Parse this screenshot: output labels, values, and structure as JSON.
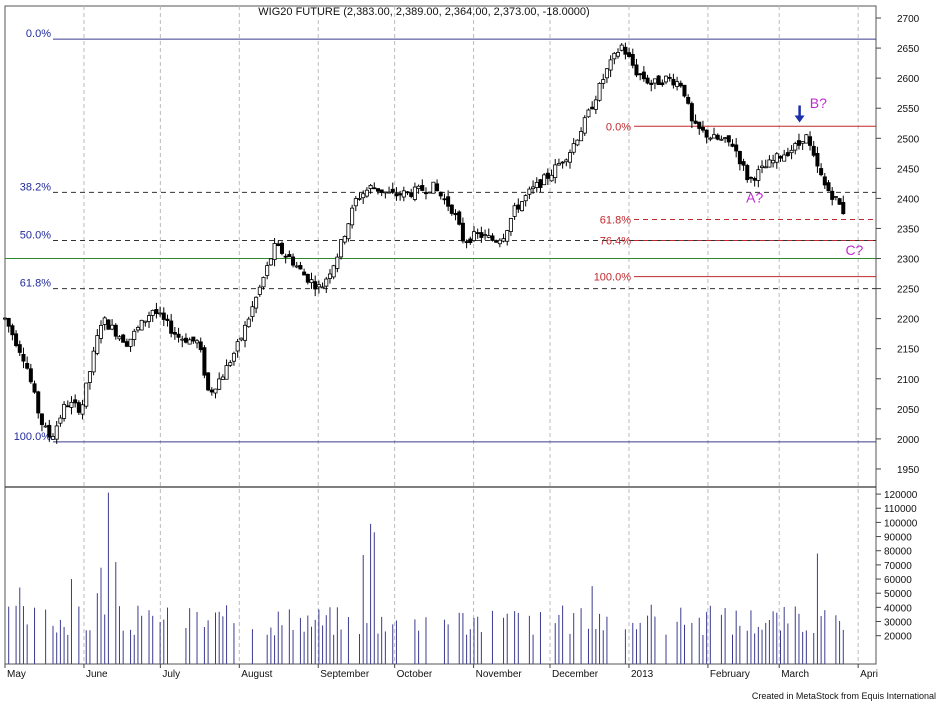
{
  "chart_data": {
    "type": "candlestick",
    "title": "WIG20 FUTURE (2,383.00, 2,389.00, 2,364.00, 2,373.00, -18.0000)",
    "footer": "Created in MetaStock from Equis International",
    "price_axis": {
      "ylim": [
        1920,
        2720
      ],
      "ticks": [
        1950,
        2000,
        2050,
        2100,
        2150,
        2200,
        2250,
        2300,
        2350,
        2400,
        2450,
        2500,
        2550,
        2600,
        2650,
        2700
      ]
    },
    "volume_axis": {
      "ylim": [
        0,
        125000
      ],
      "ticks": [
        20000,
        30000,
        40000,
        50000,
        60000,
        70000,
        80000,
        90000,
        100000,
        110000,
        120000
      ]
    },
    "x_labels": [
      {
        "label": "May",
        "day": 0
      },
      {
        "label": "June",
        "day": 31
      },
      {
        "label": "July",
        "day": 61
      },
      {
        "label": "August",
        "day": 92
      },
      {
        "label": "September",
        "day": 123
      },
      {
        "label": "October",
        "day": 153
      },
      {
        "label": "November",
        "day": 184
      },
      {
        "label": "December",
        "day": 214
      },
      {
        "label": "2013",
        "day": 245
      },
      {
        "label": "February",
        "day": 276
      },
      {
        "label": "March",
        "day": 304
      },
      {
        "label": "Apri",
        "day": 335
      }
    ],
    "fib_big": [
      {
        "label": "0.0%",
        "value": 2665
      },
      {
        "label": "38.2%",
        "value": 2410
      },
      {
        "label": "50.0%",
        "value": 2330
      },
      {
        "label": "61.8%",
        "value": 2250
      },
      {
        "label": "100.0%",
        "value": 1995
      }
    ],
    "green_line": 2300,
    "fib_small": [
      {
        "label": "0.0%",
        "value": 2520
      },
      {
        "label": "61.8%",
        "value": 2365
      },
      {
        "label": "76.4%",
        "value": 2330
      },
      {
        "label": "100.0%",
        "value": 2270
      }
    ],
    "annotations": [
      {
        "text": "B?",
        "day": 316,
        "value": 2550
      },
      {
        "text": "A?",
        "day": 291,
        "value": 2393
      },
      {
        "text": "C?",
        "day": 330,
        "value": 2306
      }
    ],
    "arrow": {
      "day": 312,
      "value": 2528
    },
    "waypoints": [
      [
        0,
        2200
      ],
      [
        8,
        2130
      ],
      [
        14,
        2030
      ],
      [
        18,
        2000
      ],
      [
        24,
        2060
      ],
      [
        30,
        2050
      ],
      [
        38,
        2200
      ],
      [
        48,
        2160
      ],
      [
        58,
        2215
      ],
      [
        68,
        2170
      ],
      [
        76,
        2160
      ],
      [
        80,
        2075
      ],
      [
        86,
        2110
      ],
      [
        92,
        2160
      ],
      [
        100,
        2250
      ],
      [
        106,
        2320
      ],
      [
        112,
        2300
      ],
      [
        118,
        2270
      ],
      [
        124,
        2250
      ],
      [
        130,
        2300
      ],
      [
        134,
        2350
      ],
      [
        138,
        2400
      ],
      [
        144,
        2420
      ],
      [
        152,
        2405
      ],
      [
        160,
        2410
      ],
      [
        168,
        2420
      ],
      [
        176,
        2380
      ],
      [
        180,
        2330
      ],
      [
        186,
        2340
      ],
      [
        192,
        2330
      ],
      [
        196,
        2340
      ],
      [
        200,
        2380
      ],
      [
        206,
        2410
      ],
      [
        214,
        2440
      ],
      [
        222,
        2480
      ],
      [
        228,
        2530
      ],
      [
        236,
        2610
      ],
      [
        242,
        2655
      ],
      [
        248,
        2610
      ],
      [
        254,
        2590
      ],
      [
        260,
        2600
      ],
      [
        266,
        2590
      ],
      [
        270,
        2520
      ],
      [
        278,
        2500
      ],
      [
        286,
        2490
      ],
      [
        292,
        2430
      ],
      [
        298,
        2450
      ],
      [
        304,
        2470
      ],
      [
        312,
        2490
      ],
      [
        314,
        2510
      ],
      [
        318,
        2460
      ],
      [
        322,
        2420
      ],
      [
        326,
        2400
      ],
      [
        330,
        2373
      ]
    ],
    "volume_spikes": [
      {
        "day": 40,
        "value": 121000
      },
      {
        "day": 38,
        "value": 68000
      },
      {
        "day": 43,
        "value": 72000
      },
      {
        "day": 143,
        "value": 99000
      },
      {
        "day": 145,
        "value": 93000
      },
      {
        "day": 141,
        "value": 77000
      },
      {
        "day": 231,
        "value": 55000
      },
      {
        "day": 319,
        "value": 78000
      },
      {
        "day": 6,
        "value": 54000
      },
      {
        "day": 26,
        "value": 60000
      },
      {
        "day": 36,
        "value": 50000
      }
    ]
  }
}
